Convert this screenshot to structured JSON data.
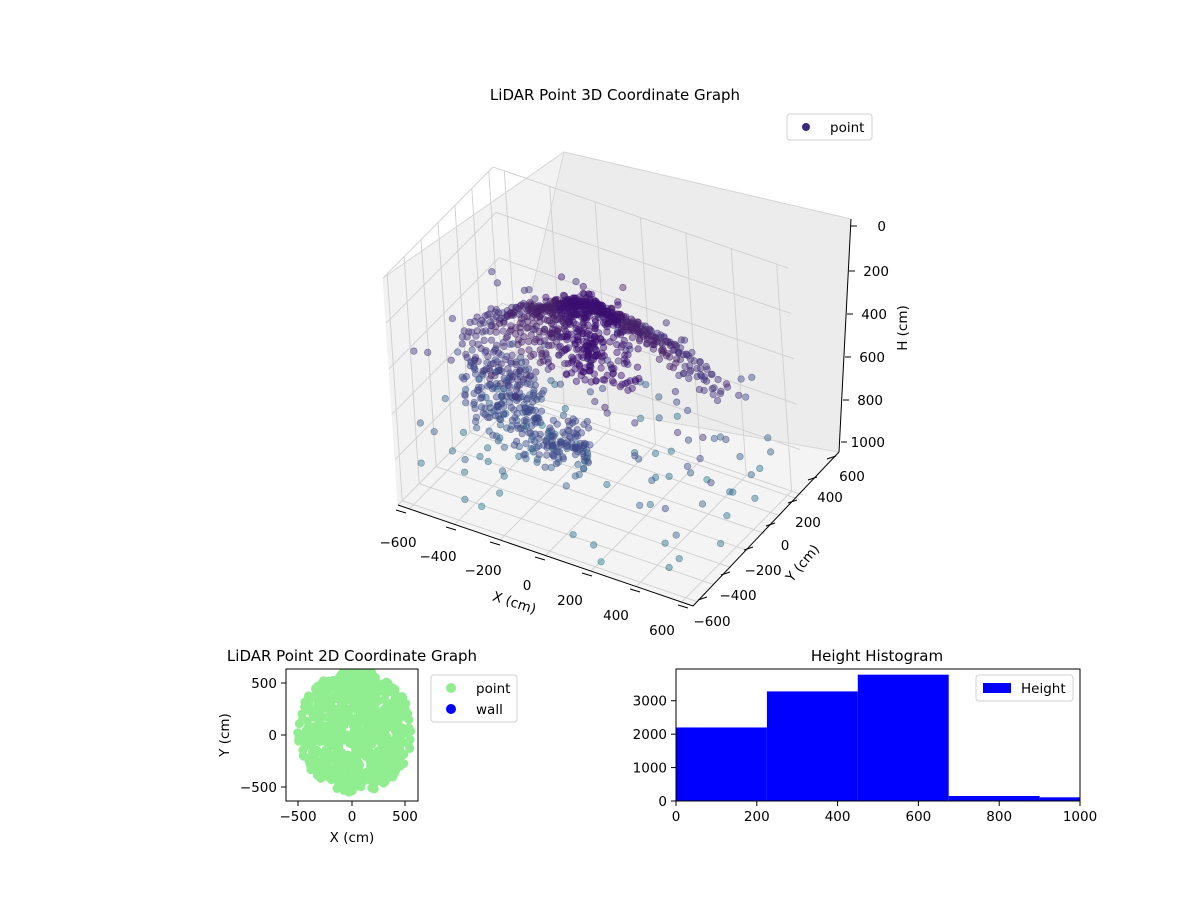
{
  "charts": [
    {
      "title": "LiDAR Point 3D Coordinate Graph",
      "legend": [
        "point"
      ],
      "xlabel": "X (cm)",
      "ylabel": "Y (cm)",
      "zlabel": "H (cm)",
      "x_ticks": [
        "−600",
        "−400",
        "−200",
        "0",
        "200",
        "400",
        "600"
      ],
      "y_ticks": [
        "−600",
        "−400",
        "−200",
        "0",
        "200",
        "400",
        "600"
      ],
      "z_ticks": [
        "0",
        "200",
        "400",
        "600",
        "800",
        "1000"
      ]
    },
    {
      "title": "LiDAR Point 2D Coordinate Graph",
      "legend": [
        "point",
        "wall"
      ],
      "xlabel": "X (cm)",
      "ylabel": "Y (cm)",
      "x_ticks": [
        "−500",
        "0",
        "500"
      ],
      "y_ticks": [
        "500",
        "0",
        "−500"
      ]
    },
    {
      "title": "Height Histogram",
      "legend": [
        "Height"
      ],
      "x_ticks": [
        "0",
        "200",
        "400",
        "600",
        "800",
        "1000"
      ],
      "y_ticks": [
        "0",
        "1000",
        "2000",
        "3000"
      ]
    }
  ],
  "chart_data": [
    {
      "type": "scatter",
      "title": "LiDAR Point 3D Coordinate Graph",
      "xlabel": "X (cm)",
      "ylabel": "Y (cm)",
      "zlabel": "H (cm)",
      "xlim": [
        -650,
        650
      ],
      "ylim": [
        -650,
        650
      ],
      "zlim": [
        1000,
        0
      ],
      "z_inverted": true,
      "series": [
        {
          "name": "point",
          "color": "#3b2a7a",
          "colormap": "viridis"
        }
      ],
      "legend_position": "upper right",
      "grid": true,
      "note_values": "dense dome-shaped cloud of several thousand points"
    },
    {
      "type": "scatter",
      "title": "LiDAR Point 2D Coordinate Graph",
      "xlabel": "X (cm)",
      "ylabel": "Y (cm)",
      "xlim": [
        -620,
        620
      ],
      "ylim": [
        -620,
        620
      ],
      "series": [
        {
          "name": "point",
          "color": "#90ee90"
        },
        {
          "name": "wall",
          "color": "#0000ff"
        }
      ],
      "legend_position": "outside right"
    },
    {
      "type": "bar",
      "title": "Height Histogram",
      "bin_edges": [
        0,
        225,
        450,
        675,
        900,
        1000
      ],
      "values": [
        2200,
        3280,
        3780,
        150,
        110
      ],
      "xlim": [
        0,
        1000
      ],
      "ylim": [
        0,
        3950
      ],
      "series": [
        {
          "name": "Height",
          "color": "#0000ff"
        }
      ],
      "legend_position": "upper right"
    }
  ]
}
